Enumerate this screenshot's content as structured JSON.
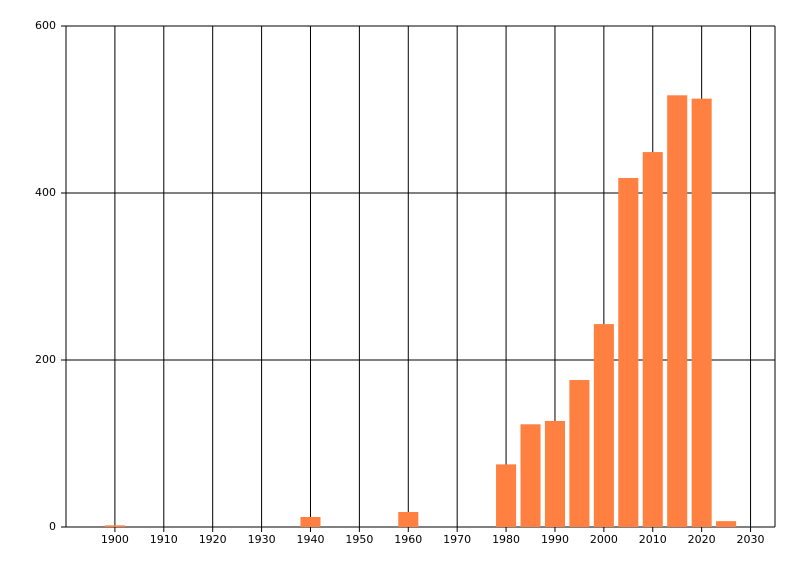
{
  "chart_data": {
    "type": "bar",
    "x": [
      1900,
      1940,
      1960,
      1980,
      1985,
      1990,
      1995,
      2000,
      2005,
      2010,
      2015,
      2020,
      2025
    ],
    "values": [
      2,
      12,
      18,
      75,
      123,
      127,
      176,
      243,
      418,
      449,
      517,
      513,
      7
    ],
    "color": "#ff8040",
    "xlim": [
      1890,
      2035
    ],
    "xticks": [
      1900,
      1910,
      1920,
      1930,
      1940,
      1950,
      1960,
      1970,
      1980,
      1990,
      2000,
      2010,
      2020,
      2030
    ],
    "ylim": [
      0,
      600
    ],
    "yticks": [
      0,
      200,
      400,
      600
    ],
    "grid": true
  }
}
